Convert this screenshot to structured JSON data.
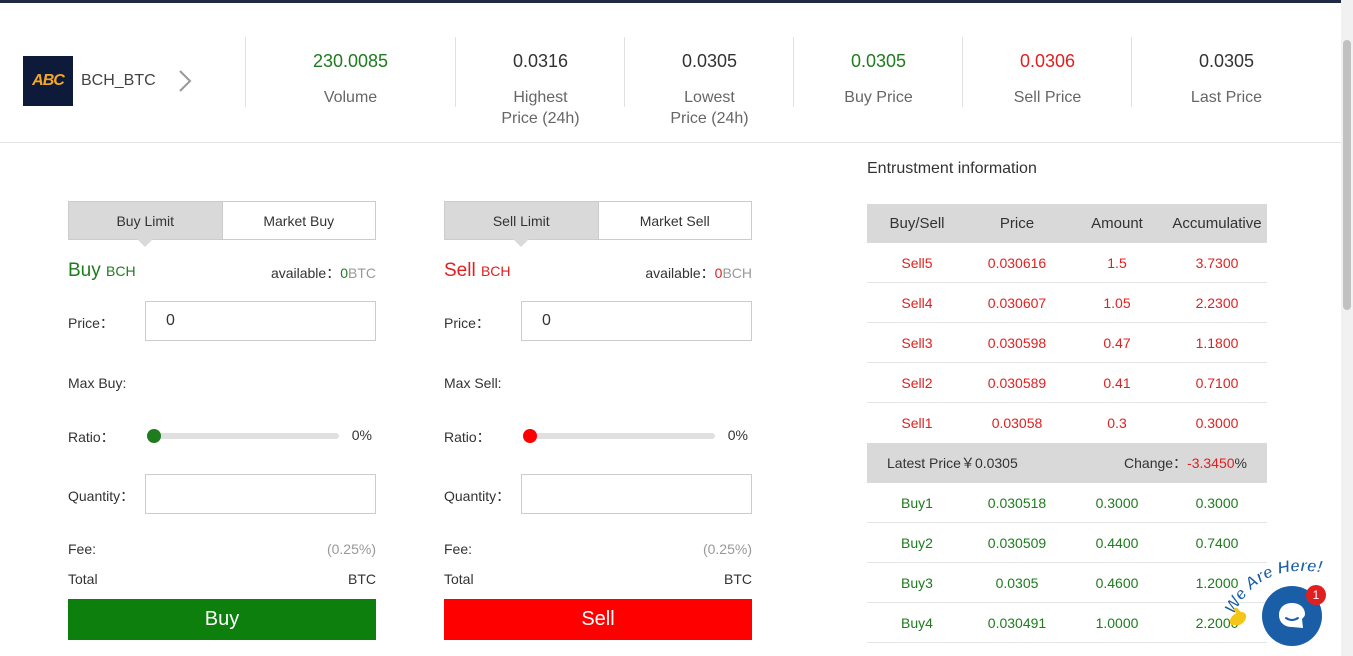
{
  "header": {
    "logo_text": "ABC",
    "pair": "BCH_BTC",
    "stats": [
      {
        "value": "230.0085",
        "label": "Volume",
        "color": "#1e7b1e"
      },
      {
        "value": "0.0316",
        "label": "Highest Price (24h)",
        "color": "#333333"
      },
      {
        "value": "0.0305",
        "label": "Lowest Price (24h)",
        "color": "#333333"
      },
      {
        "value": "0.0305",
        "label": "Buy Price",
        "color": "#1e7b1e"
      },
      {
        "value": "0.0306",
        "label": "Sell Price",
        "color": "#e02020"
      },
      {
        "value": "0.0305",
        "label": "Last Price",
        "color": "#333333"
      }
    ]
  },
  "buy_panel": {
    "tab_limit": "Buy Limit",
    "tab_market": "Market Buy",
    "title": "Buy",
    "title_unit": "BCH",
    "available_label": "available：",
    "available_value": "0",
    "available_unit": "BTC",
    "price_label": "Price：",
    "price_value": "0",
    "max_label": "Max Buy:",
    "ratio_label": "Ratio：",
    "ratio_percent": "0%",
    "ratio_fraction": 0,
    "quantity_label": "Quantity：",
    "fee_label": "Fee:",
    "fee_value": "(0.25%)",
    "total_label": "Total",
    "total_unit": "BTC",
    "button": "Buy"
  },
  "sell_panel": {
    "tab_limit": "Sell Limit",
    "tab_market": "Market Sell",
    "title": "Sell",
    "title_unit": "BCH",
    "available_label": "available：",
    "available_value": "0",
    "available_unit": "BCH",
    "price_label": "Price：",
    "price_value": "0",
    "max_label": "Max Sell:",
    "ratio_label": "Ratio：",
    "ratio_percent": "0%",
    "ratio_fraction": 0,
    "quantity_label": "Quantity：",
    "fee_label": "Fee:",
    "fee_value": "(0.25%)",
    "total_label": "Total",
    "total_unit": "BTC",
    "button": "Sell"
  },
  "book": {
    "title": "Entrustment information",
    "headers": [
      "Buy/Sell",
      "Price",
      "Amount",
      "Accumulative"
    ],
    "sells": [
      [
        "Sell5",
        "0.030616",
        "1.5",
        "3.7300"
      ],
      [
        "Sell4",
        "0.030607",
        "1.05",
        "2.2300"
      ],
      [
        "Sell3",
        "0.030598",
        "0.47",
        "1.1800"
      ],
      [
        "Sell2",
        "0.030589",
        "0.41",
        "0.7100"
      ],
      [
        "Sell1",
        "0.03058",
        "0.3",
        "0.3000"
      ]
    ],
    "latest_label": "Latest Price￥",
    "latest_value": "0.0305",
    "change_label": "Change：",
    "change_value": "-3.3450",
    "change_suffix": "%",
    "buys": [
      [
        "Buy1",
        "0.030518",
        "0.3000",
        "0.3000"
      ],
      [
        "Buy2",
        "0.030509",
        "0.4400",
        "0.7400"
      ],
      [
        "Buy3",
        "0.0305",
        "0.4600",
        "1.2000"
      ],
      [
        "Buy4",
        "0.030491",
        "1.0000",
        "2.2000"
      ]
    ]
  },
  "chat": {
    "badge": "1",
    "banner": "We Are Here!"
  },
  "colors": {
    "buy": "#1e7b1e",
    "sell": "#e02020",
    "buy_button": "#0d7f0d",
    "sell_button": "#ff0000",
    "chat": "#1b5ea8"
  }
}
